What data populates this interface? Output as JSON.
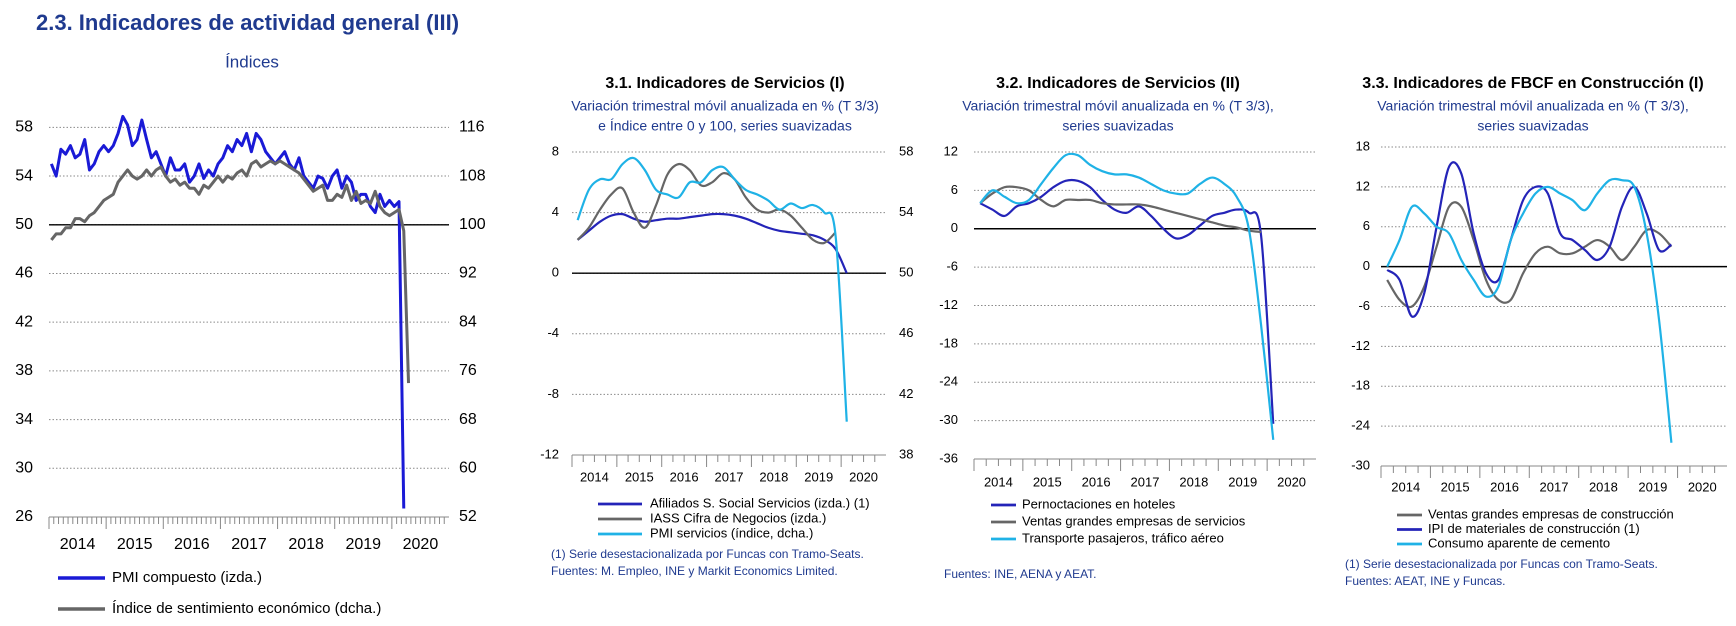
{
  "header": {
    "title": "2.3. Indicadores de actividad general (III)"
  },
  "chart_data": [
    {
      "type": "line",
      "subtitle": [
        "Índices"
      ],
      "categories": [
        "2014",
        null,
        null,
        null,
        null,
        null,
        null,
        null,
        null,
        null,
        null,
        null,
        "2015",
        null,
        null,
        null,
        null,
        null,
        null,
        null,
        null,
        null,
        null,
        null,
        "2016",
        null,
        null,
        null,
        null,
        null,
        null,
        null,
        null,
        null,
        null,
        null,
        "2017",
        null,
        null,
        null,
        null,
        null,
        null,
        null,
        null,
        null,
        null,
        null,
        "2018",
        null,
        null,
        null,
        null,
        null,
        null,
        null,
        null,
        null,
        null,
        null,
        "2019",
        null,
        null,
        null,
        null,
        null,
        null,
        null,
        null,
        null,
        null,
        null,
        "2020",
        null,
        null,
        null,
        null,
        null,
        null,
        null,
        null,
        null,
        null,
        null
      ],
      "ylim": [
        26,
        60
      ],
      "yticks": [
        26,
        30,
        34,
        38,
        42,
        46,
        50,
        54,
        58
      ],
      "y2lim": [
        52,
        120
      ],
      "y2ticks": [
        52,
        60,
        68,
        76,
        84,
        92,
        100,
        108,
        116
      ],
      "grid": true,
      "reference_line": 50,
      "smooth": false,
      "series": [
        {
          "name": "PMI compuesto (izda.)",
          "color": "#1a1ad6",
          "values": [
            55.0,
            54.0,
            56.2,
            55.8,
            56.5,
            55.5,
            55.8,
            57.0,
            54.5,
            55.0,
            56.0,
            56.5,
            56.0,
            56.5,
            57.5,
            58.9,
            58.2,
            56.5,
            57.0,
            58.6,
            57.0,
            55.5,
            56.0,
            55.0,
            54.0,
            55.5,
            54.5,
            54.5,
            55.0,
            53.5,
            54.0,
            55.0,
            53.8,
            54.5,
            54.0,
            55.0,
            55.5,
            56.5,
            56.0,
            57.0,
            56.5,
            57.5,
            56.0,
            57.5,
            57.0,
            56.0,
            55.5,
            55.0,
            55.5,
            56.0,
            55.0,
            54.5,
            55.5,
            54.0,
            53.5,
            53.0,
            54.0,
            53.8,
            53.0,
            54.0,
            54.5,
            53.0,
            54.0,
            53.5,
            52.0,
            52.5,
            52.5,
            51.5,
            51.0,
            52.5,
            51.5,
            52.0,
            51.5,
            51.9,
            26.7,
            null,
            null,
            null,
            null,
            null,
            null,
            null,
            null,
            null
          ]
        },
        {
          "name": "Índice de sentimiento económico (dcha.)",
          "color": "#666666",
          "axis": "y2",
          "values": [
            97.5,
            98.5,
            98.5,
            99.5,
            99.5,
            101,
            101,
            100.5,
            101.5,
            102,
            103,
            104,
            104.5,
            105,
            107,
            108,
            109,
            108,
            107.5,
            108,
            109,
            108,
            109,
            109.5,
            108,
            107,
            107.5,
            106.5,
            107,
            106,
            106,
            105,
            106.5,
            106,
            107,
            108,
            107,
            108,
            107.5,
            108.5,
            109,
            108,
            110,
            110.5,
            109.5,
            110,
            110.5,
            110,
            110.5,
            110,
            109.5,
            109,
            108.5,
            107.5,
            106.5,
            105.5,
            106,
            106.5,
            104,
            104,
            105,
            104.5,
            106.5,
            104,
            105.5,
            103.5,
            104,
            103.5,
            105.5,
            103,
            102,
            101.5,
            102,
            102.5,
            99,
            74,
            null,
            null,
            null,
            null,
            null,
            null,
            null,
            null
          ]
        }
      ]
    },
    {
      "type": "line",
      "title": "3.1. Indicadores de Servicios (I)",
      "subtitle": [
        "Variación trimestral móvil anualizada en % (T 3/3)",
        "e Índice entre 0 y 100, series suavizadas"
      ],
      "categories": [
        "2014",
        null,
        null,
        null,
        "2015",
        null,
        null,
        null,
        "2016",
        null,
        null,
        null,
        "2017",
        null,
        null,
        null,
        "2018",
        null,
        null,
        null,
        "2019",
        null,
        null,
        null,
        "2020",
        null,
        null,
        null
      ],
      "ylim": [
        -12,
        8
      ],
      "yticks": [
        -12,
        -8,
        -4,
        0,
        4,
        8
      ],
      "y2lim": [
        38,
        58
      ],
      "y2ticks": [
        38,
        42,
        46,
        50,
        54,
        58
      ],
      "grid": true,
      "reference_line": 0,
      "smooth": true,
      "series": [
        {
          "name": "Afiliados S. Social Servicios (izda.) (1)",
          "color": "#2424b8",
          "values": [
            2.2,
            2.8,
            3.4,
            3.8,
            3.9,
            3.6,
            3.4,
            3.5,
            3.6,
            3.6,
            3.7,
            3.8,
            3.9,
            3.9,
            3.8,
            3.6,
            3.3,
            3.0,
            2.8,
            2.7,
            2.6,
            2.5,
            2.2,
            1.6,
            0.0,
            null,
            null,
            null
          ]
        },
        {
          "name": "IASS Cifra de Negocios (izda.)",
          "color": "#666666",
          "values": [
            2.2,
            3.0,
            4.2,
            5.2,
            5.6,
            4.0,
            3.0,
            4.5,
            6.5,
            7.2,
            6.8,
            5.8,
            6.0,
            6.6,
            6.2,
            5.0,
            4.2,
            4.0,
            4.2,
            3.8,
            3.0,
            2.2,
            2.0,
            2.7,
            null,
            null,
            null,
            null
          ]
        },
        {
          "name": "PMI servicios (índice, dcha.)",
          "color": "#1fb2e6",
          "axis": "y2",
          "values": [
            53.5,
            55.5,
            56.2,
            56.2,
            57.2,
            57.6,
            56.8,
            55.5,
            55.2,
            55.0,
            56.0,
            56.0,
            56.8,
            57.0,
            56.2,
            55.5,
            55.2,
            54.8,
            54.2,
            54.6,
            54.3,
            54.5,
            54.0,
            52.5,
            40.2,
            null,
            null,
            null
          ]
        }
      ],
      "notes": [
        "(1) Serie desestacionalizada por Funcas con Tramo-Seats.",
        "Fuentes:  M. Empleo, INE y Markit Economics Limited."
      ]
    },
    {
      "type": "line",
      "title": "3.2. Indicadores de Servicios (II)",
      "subtitle": [
        "Variación trimestral móvil anualizada en % (T 3/3),",
        "series suavizadas"
      ],
      "categories": [
        "2014",
        null,
        null,
        null,
        "2015",
        null,
        null,
        null,
        "2016",
        null,
        null,
        null,
        "2017",
        null,
        null,
        null,
        "2018",
        null,
        null,
        null,
        "2019",
        null,
        null,
        null,
        "2020",
        null,
        null,
        null
      ],
      "ylim": [
        -36,
        12
      ],
      "yticks": [
        -36,
        -30,
        -24,
        -18,
        -12,
        -6,
        0,
        6,
        12
      ],
      "grid": true,
      "reference_line": 0,
      "smooth": true,
      "series": [
        {
          "name": "Pernoctaciones en hoteles",
          "color": "#2424b8",
          "values": [
            4,
            3,
            2,
            3.5,
            4,
            5,
            6.5,
            7.5,
            7.5,
            6.5,
            4.5,
            3,
            2.5,
            3.5,
            2,
            0,
            -1.5,
            -1,
            0.5,
            2,
            2.5,
            3,
            2.5,
            -1,
            -30.5,
            null,
            null,
            null
          ]
        },
        {
          "name": "Ventas grandes empresas de servicios",
          "color": "#666666",
          "values": [
            4,
            5.5,
            6.5,
            6.5,
            6,
            4.5,
            3.5,
            4.5,
            4.5,
            4.5,
            4,
            3.8,
            3.8,
            3.8,
            3.5,
            3,
            2.5,
            2,
            1.5,
            1,
            0.5,
            0.2,
            -0.3,
            -0.5,
            null,
            null,
            null,
            null
          ]
        },
        {
          "name": "Transporte pasajeros, tráfico aéreo",
          "color": "#1fb2e6",
          "values": [
            4,
            6,
            5,
            4,
            4.5,
            7,
            9.5,
            11.5,
            11.5,
            10,
            9,
            8.5,
            8.5,
            8,
            7,
            6,
            5.5,
            5.5,
            7,
            8,
            7,
            5,
            0,
            -15,
            -33,
            null,
            null,
            null
          ]
        }
      ],
      "notes": [
        "Fuentes: INE, AENA y AEAT."
      ]
    },
    {
      "type": "line",
      "title": "3.3. Indicadores de FBCF en Construcción (I)",
      "subtitle": [
        "Variación trimestral móvil anualizada en % (T 3/3),",
        "series suavizadas"
      ],
      "categories": [
        "2014",
        null,
        null,
        null,
        "2015",
        null,
        null,
        null,
        "2016",
        null,
        null,
        null,
        "2017",
        null,
        null,
        null,
        "2018",
        null,
        null,
        null,
        "2019",
        null,
        null,
        null,
        "2020",
        null,
        null,
        null
      ],
      "ylim": [
        -30,
        18
      ],
      "yticks": [
        -30,
        -24,
        -18,
        -12,
        -6,
        0,
        6,
        12,
        18
      ],
      "grid": true,
      "reference_line": 0,
      "smooth": true,
      "series": [
        {
          "name": "Ventas grandes empresas de construcción",
          "color": "#666666",
          "values": [
            -2,
            -5,
            -6,
            -3,
            3,
            9,
            9,
            4,
            -2,
            -5,
            -5,
            -1,
            2,
            3,
            2,
            2,
            3,
            4,
            3,
            1,
            3,
            5.5,
            5,
            3,
            null,
            null,
            null,
            null
          ]
        },
        {
          "name": "IPI de materiales de construcción (1)",
          "color": "#2424b8",
          "values": [
            -0.5,
            -2,
            -7.5,
            -4,
            6,
            15,
            14,
            5,
            -1,
            -2,
            4,
            10,
            12,
            11,
            5,
            4,
            2.5,
            1,
            3,
            9,
            12,
            8,
            2.5,
            3.3,
            null,
            null,
            null,
            null
          ]
        },
        {
          "name": "Consumo aparente de cemento",
          "color": "#1fb2e6",
          "values": [
            0,
            4,
            9,
            8,
            6,
            5,
            1,
            -2,
            -4.5,
            -3,
            4,
            8,
            11,
            12,
            11,
            10,
            8.5,
            11,
            13,
            13,
            12,
            5,
            -8,
            -26.5,
            null,
            null,
            null,
            null
          ]
        }
      ],
      "notes": [
        "(1) Serie desestacionalizada por Funcas con Tramo-Seats.",
        "Fuentes: AEAT, INE y Funcas."
      ]
    }
  ]
}
